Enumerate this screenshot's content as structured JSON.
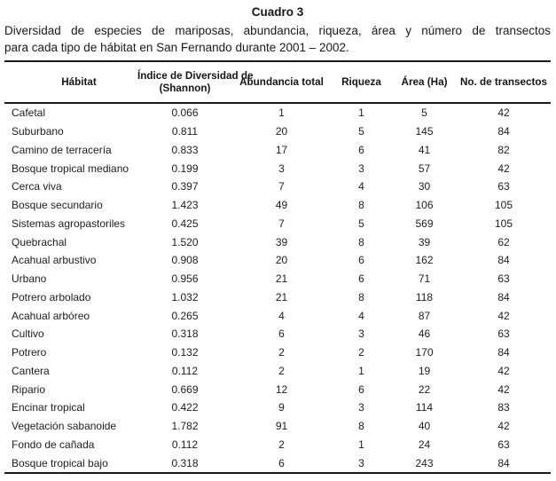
{
  "document": {
    "title": "Cuadro 3",
    "caption_line1": "Diversidad de especies de mariposas, abundancia, riqueza, área y número de transectos",
    "caption_line2": "para cada tipo de hábitat en San Fernando durante 2001 – 2002."
  },
  "table": {
    "columns": [
      {
        "label": "Hábitat"
      },
      {
        "label": "Índice de Diversidad de",
        "label2": "(Shannon)"
      },
      {
        "label": "Abundancia total"
      },
      {
        "label": "Riqueza"
      },
      {
        "label": "Área (Ha)"
      },
      {
        "label": "No. de transectos"
      }
    ],
    "rows": [
      [
        "Cafetal",
        "0.066",
        "1",
        "1",
        "5",
        "42"
      ],
      [
        "Suburbano",
        "0.811",
        "20",
        "5",
        "145",
        "84"
      ],
      [
        "Camino de terracería",
        "0.833",
        "17",
        "6",
        "41",
        "82"
      ],
      [
        "Bosque tropical mediano",
        "0.199",
        "3",
        "3",
        "57",
        "42"
      ],
      [
        "Cerca viva",
        "0.397",
        "7",
        "4",
        "30",
        "63"
      ],
      [
        "Bosque secundario",
        "1.423",
        "49",
        "8",
        "106",
        "105"
      ],
      [
        "Sistemas agropastoriles",
        "0.425",
        "7",
        "5",
        "569",
        "105"
      ],
      [
        "Quebrachal",
        "1.520",
        "39",
        "8",
        "39",
        "62"
      ],
      [
        "Acahual arbustivo",
        "0.908",
        "20",
        "6",
        "162",
        "84"
      ],
      [
        "Urbano",
        "0.956",
        "21",
        "6",
        "71",
        "63"
      ],
      [
        "Potrero arbolado",
        "1.032",
        "21",
        "8",
        "118",
        "84"
      ],
      [
        "Acahual arbóreo",
        "0.265",
        "4",
        "4",
        "87",
        "42"
      ],
      [
        "Cultivo",
        "0.318",
        "6",
        "3",
        "46",
        "63"
      ],
      [
        "Potrero",
        "0.132",
        "2",
        "2",
        "170",
        "84"
      ],
      [
        "Cantera",
        "0.112",
        "2",
        "1",
        "19",
        "42"
      ],
      [
        "Ripario",
        "0.669",
        "12",
        "6",
        "22",
        "42"
      ],
      [
        "Encinar tropical",
        "0.422",
        "9",
        "3",
        "114",
        "83"
      ],
      [
        "Vegetación sabanoide",
        "1.782",
        "91",
        "8",
        "40",
        "42"
      ],
      [
        "Fondo de cañada",
        "0.112",
        "2",
        "1",
        "24",
        "63"
      ],
      [
        "Bosque tropical bajo",
        "0.318",
        "6",
        "3",
        "243",
        "84"
      ]
    ]
  }
}
